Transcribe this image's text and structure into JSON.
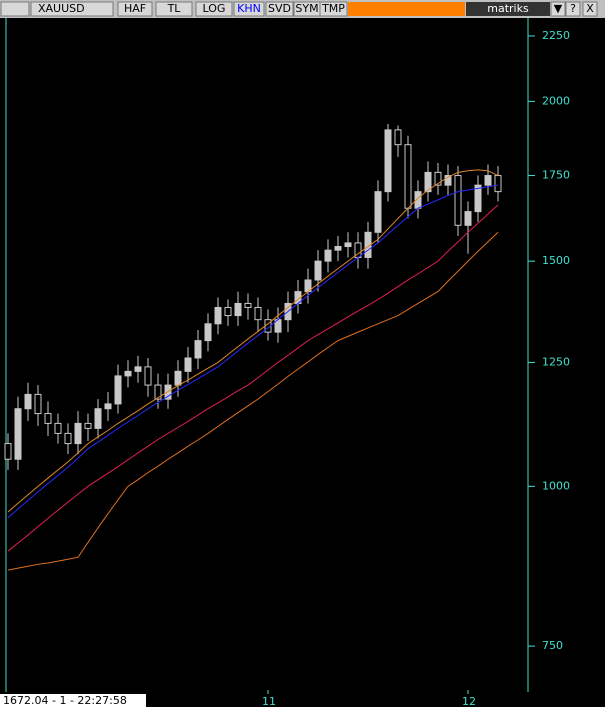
{
  "toolbar": {
    "symbol": "XAUUSD",
    "buttons": [
      "HAF",
      "TL",
      "LOG",
      "KHN",
      "SVD",
      "SYM",
      "TMP"
    ],
    "brand": "matriks",
    "controls": [
      "▼",
      "?",
      "X"
    ]
  },
  "status": "1672.04 - 1 - 22:27:58",
  "chart_data": {
    "type": "candlestick",
    "log": true,
    "ylim": [
      693,
      2324
    ],
    "yticks": [
      750,
      1000,
      1250,
      1500,
      1750,
      2000,
      2250
    ],
    "categories": [
      null,
      null,
      null,
      null,
      null,
      null,
      null,
      null,
      null,
      null,
      null,
      null,
      null,
      null,
      null,
      null,
      null,
      null,
      null,
      null,
      null,
      null,
      null,
      null,
      null,
      null,
      "11",
      null,
      null,
      null,
      null,
      null,
      null,
      null,
      null,
      null,
      null,
      null,
      null,
      null,
      null,
      null,
      null,
      null,
      null,
      null,
      "12",
      null,
      null,
      null
    ],
    "open": [
      1080,
      1050,
      1150,
      1180,
      1140,
      1120,
      1100,
      1080,
      1120,
      1110,
      1150,
      1160,
      1220,
      1230,
      1240,
      1200,
      1170,
      1200,
      1230,
      1260,
      1300,
      1340,
      1380,
      1360,
      1390,
      1380,
      1350,
      1320,
      1350,
      1390,
      1420,
      1450,
      1500,
      1530,
      1540,
      1550,
      1510,
      1580,
      1700,
      1900,
      1850,
      1650,
      1700,
      1760,
      1720,
      1750,
      1600,
      1640,
      1720,
      1750
    ],
    "high": [
      1100,
      1175,
      1205,
      1200,
      1165,
      1140,
      1120,
      1145,
      1140,
      1170,
      1185,
      1245,
      1255,
      1265,
      1260,
      1225,
      1225,
      1255,
      1285,
      1325,
      1365,
      1405,
      1400,
      1420,
      1415,
      1405,
      1375,
      1380,
      1420,
      1450,
      1480,
      1530,
      1560,
      1570,
      1580,
      1580,
      1610,
      1735,
      1920,
      1915,
      1880,
      1735,
      1795,
      1790,
      1785,
      1780,
      1670,
      1750,
      1785,
      1780
    ],
    "low": [
      1030,
      1030,
      1125,
      1115,
      1095,
      1080,
      1060,
      1060,
      1085,
      1090,
      1125,
      1140,
      1195,
      1205,
      1175,
      1150,
      1150,
      1175,
      1205,
      1235,
      1275,
      1315,
      1335,
      1335,
      1350,
      1320,
      1300,
      1295,
      1320,
      1365,
      1390,
      1420,
      1470,
      1500,
      1510,
      1480,
      1480,
      1550,
      1670,
      1810,
      1620,
      1620,
      1670,
      1690,
      1690,
      1570,
      1520,
      1610,
      1690,
      1670
    ],
    "close": [
      1050,
      1150,
      1180,
      1140,
      1120,
      1100,
      1080,
      1120,
      1110,
      1150,
      1160,
      1220,
      1230,
      1240,
      1200,
      1170,
      1200,
      1230,
      1260,
      1300,
      1340,
      1380,
      1360,
      1390,
      1380,
      1350,
      1320,
      1350,
      1390,
      1420,
      1450,
      1500,
      1530,
      1540,
      1550,
      1510,
      1580,
      1700,
      1900,
      1850,
      1650,
      1700,
      1760,
      1720,
      1750,
      1600,
      1640,
      1720,
      1750,
      1700
    ],
    "candle_color": "#c8c8c8",
    "series": [
      {
        "color": "#e0862a",
        "values": [
          955,
          970,
          985,
          1000,
          1015,
          1030,
          1045,
          1062,
          1080,
          1093,
          1106,
          1120,
          1133,
          1146,
          1160,
          1173,
          1186,
          1199,
          1211,
          1224,
          1237,
          1250,
          1268,
          1286,
          1304,
          1322,
          1340,
          1360,
          1380,
          1400,
          1420,
          1440,
          1460,
          1480,
          1500,
          1520,
          1540,
          1560,
          1590,
          1620,
          1650,
          1680,
          1705,
          1725,
          1745,
          1760,
          1765,
          1768,
          1765,
          1750
        ]
      },
      {
        "color": "#2828ff",
        "values": [
          945,
          960,
          975,
          990,
          1005,
          1020,
          1035,
          1052,
          1070,
          1083,
          1096,
          1110,
          1123,
          1136,
          1150,
          1163,
          1176,
          1189,
          1201,
          1214,
          1227,
          1240,
          1258,
          1276,
          1294,
          1312,
          1330,
          1350,
          1370,
          1390,
          1410,
          1430,
          1450,
          1470,
          1490,
          1510,
          1530,
          1550,
          1575,
          1600,
          1625,
          1650,
          1662,
          1675,
          1688,
          1700,
          1705,
          1710,
          1715,
          1720
        ]
      },
      {
        "color": "#e0204a",
        "values": [
          890,
          903,
          916,
          930,
          944,
          958,
          972,
          986,
          1000,
          1012,
          1024,
          1036,
          1049,
          1062,
          1075,
          1088,
          1100,
          1112,
          1124,
          1137,
          1150,
          1162,
          1175,
          1188,
          1200,
          1216,
          1233,
          1250,
          1266,
          1283,
          1300,
          1314,
          1328,
          1342,
          1357,
          1371,
          1385,
          1400,
          1416,
          1433,
          1450,
          1466,
          1483,
          1500,
          1527,
          1553,
          1580,
          1606,
          1633,
          1660
        ]
      },
      {
        "color": "#e07020",
        "values": [
          860,
          863,
          866,
          869,
          871,
          874,
          877,
          880,
          904,
          928,
          952,
          976,
          1000,
          1012,
          1025,
          1037,
          1050,
          1062,
          1075,
          1087,
          1100,
          1114,
          1128,
          1142,
          1156,
          1170,
          1186,
          1202,
          1219,
          1235,
          1251,
          1268,
          1284,
          1300,
          1310,
          1320,
          1330,
          1340,
          1350,
          1360,
          1375,
          1390,
          1405,
          1420,
          1447,
          1473,
          1500,
          1527,
          1553,
          1580
        ]
      }
    ]
  }
}
